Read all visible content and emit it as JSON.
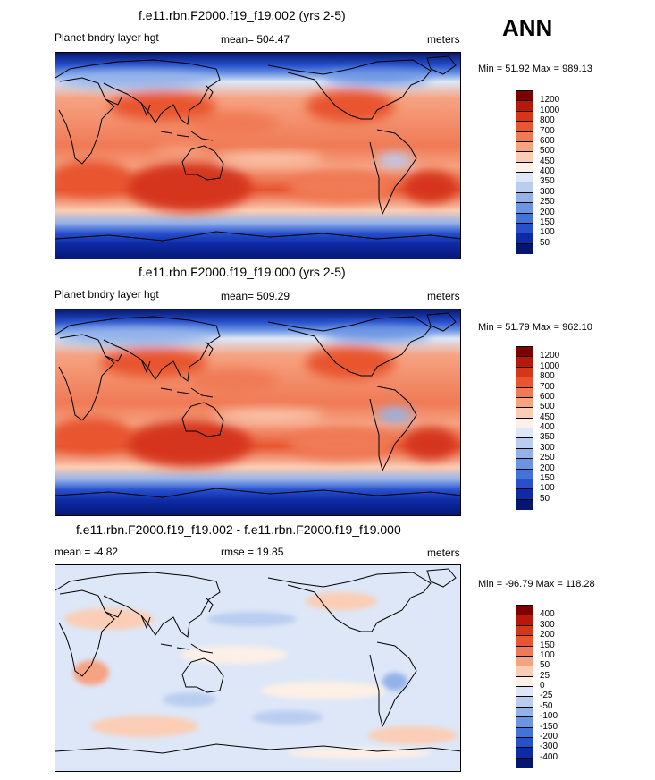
{
  "season": "ANN",
  "panels": [
    {
      "title": "f.e11.rbn.F2000.f19_f19.002 (yrs 2-5)",
      "left_label": "Planet bndry layer hgt",
      "center_label": "mean= 504.47",
      "units": "meters",
      "minmax": "Min =  51.92 Max = 989.13",
      "colorbar": {
        "labels": [
          "1200",
          "1000",
          "800",
          "700",
          "600",
          "500",
          "450",
          "400",
          "350",
          "300",
          "250",
          "200",
          "150",
          "100",
          "50"
        ],
        "colors": [
          "#7f0000",
          "#b7180a",
          "#d5361a",
          "#e8552f",
          "#f07a55",
          "#f6a382",
          "#fbcdb5",
          "#fdf0e6",
          "#dde7f7",
          "#b9cdf1",
          "#92b2ea",
          "#6b94e3",
          "#4472db",
          "#2750cc",
          "#0d2ba6",
          "#05166e"
        ]
      }
    },
    {
      "title": "f.e11.rbn.F2000.f19_f19.000 (yrs 2-5)",
      "left_label": "Planet bndry layer hgt",
      "center_label": "mean= 509.29",
      "units": "meters",
      "minmax": "Min =  51.79 Max = 962.10",
      "colorbar": {
        "labels": [
          "1200",
          "1000",
          "800",
          "700",
          "600",
          "500",
          "450",
          "400",
          "350",
          "300",
          "250",
          "200",
          "150",
          "100",
          "50"
        ],
        "colors": [
          "#7f0000",
          "#b7180a",
          "#d5361a",
          "#e8552f",
          "#f07a55",
          "#f6a382",
          "#fbcdb5",
          "#fdf0e6",
          "#dde7f7",
          "#b9cdf1",
          "#92b2ea",
          "#6b94e3",
          "#4472db",
          "#2750cc",
          "#0d2ba6",
          "#05166e"
        ]
      }
    },
    {
      "title": "f.e11.rbn.F2000.f19_f19.002 - f.e11.rbn.F2000.f19_f19.000",
      "left_label": "mean =  -4.82",
      "center_label": "rmse =  19.85",
      "units": "meters",
      "minmax": "Min = -96.79 Max = 118.28",
      "colorbar": {
        "labels": [
          "400",
          "300",
          "200",
          "150",
          "100",
          "50",
          "25",
          "0",
          "-25",
          "-50",
          "-100",
          "-150",
          "-200",
          "-300",
          "-400"
        ],
        "colors": [
          "#7f0000",
          "#b7180a",
          "#d5361a",
          "#e8552f",
          "#f07a55",
          "#f6a382",
          "#fbcdb5",
          "#fdf0e6",
          "#dde7f7",
          "#b9cdf1",
          "#92b2ea",
          "#6b94e3",
          "#4472db",
          "#2750cc",
          "#0d2ba6",
          "#05166e"
        ]
      }
    }
  ],
  "chart_data": [
    {
      "type": "heatmap",
      "title": "f.e11.rbn.F2000.f19_f19.002 (yrs 2-5)",
      "variable": "Planet bndry layer hgt",
      "units": "meters",
      "mean": 504.47,
      "min": 51.92,
      "max": 989.13,
      "contour_levels": [
        50,
        100,
        150,
        200,
        250,
        300,
        350,
        400,
        450,
        500,
        600,
        700,
        800,
        1000,
        1200
      ]
    },
    {
      "type": "heatmap",
      "title": "f.e11.rbn.F2000.f19_f19.000 (yrs 2-5)",
      "variable": "Planet bndry layer hgt",
      "units": "meters",
      "mean": 509.29,
      "min": 51.79,
      "max": 962.1,
      "contour_levels": [
        50,
        100,
        150,
        200,
        250,
        300,
        350,
        400,
        450,
        500,
        600,
        700,
        800,
        1000,
        1200
      ]
    },
    {
      "type": "heatmap",
      "title": "f.e11.rbn.F2000.f19_f19.002 - f.e11.rbn.F2000.f19_f19.000",
      "units": "meters",
      "mean": -4.82,
      "rmse": 19.85,
      "min": -96.79,
      "max": 118.28,
      "contour_levels": [
        -400,
        -300,
        -200,
        -150,
        -100,
        -50,
        -25,
        0,
        25,
        50,
        100,
        150,
        200,
        300,
        400
      ]
    }
  ]
}
